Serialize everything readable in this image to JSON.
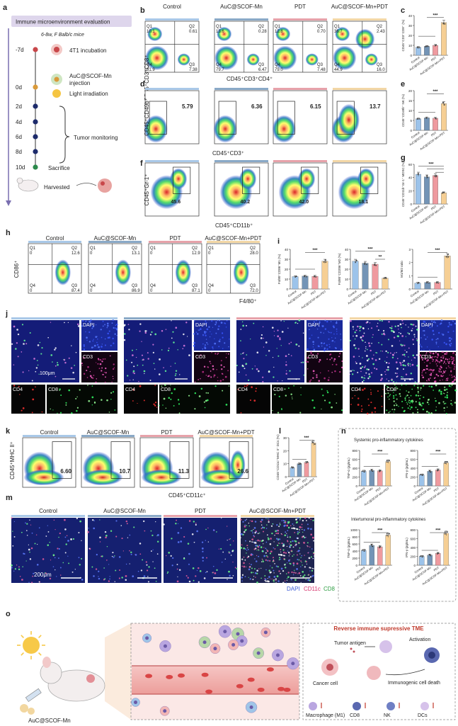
{
  "panel_letters": {
    "a": "a",
    "b": "b",
    "c": "c",
    "d": "d",
    "e": "e",
    "f": "f",
    "g": "g",
    "h": "h",
    "i": "i",
    "j": "j",
    "k": "k",
    "l": "l",
    "m": "m",
    "n": "n",
    "o": "o"
  },
  "timeline": {
    "title": "Immune microenvironment evaluation",
    "mice": "6-8w, F Balb/c mice",
    "days": [
      "-7d",
      "0d",
      "2d",
      "4d",
      "6d",
      "8d",
      "10d"
    ],
    "events": [
      "4T1 incubation",
      "AuC@SCOF-Mn injection",
      "Light irradiation",
      "Tumor monitoring",
      "Sacrifice",
      "Harvested"
    ]
  },
  "groups": [
    "Control",
    "AuC@SCOF-Mn",
    "PDT",
    "AuC@SCOF-Mn+PDT"
  ],
  "group_colors": [
    "#a9c8e8",
    "#8aa9c7",
    "#e7a2aa",
    "#f3d7a6"
  ],
  "flow_b": {
    "ylabel": "CD45⁺CD3⁺CD8⁺",
    "xlabel": "CD45⁺CD3⁺CD4⁺",
    "quadrants": [
      {
        "Q1": "10.1",
        "Q2": "0.61",
        "Q3": "7.38",
        "Q4": "81.9"
      },
      {
        "Q1": "13.6",
        "Q2": "0.28",
        "Q3": "6.47",
        "Q4": "79.7"
      },
      {
        "Q1": "12.8",
        "Q2": "0.70",
        "Q3": "7.48",
        "Q4": "79.0"
      },
      {
        "Q1": "36.7",
        "Q2": "2.43",
        "Q3": "16.0",
        "Q4": "44.9"
      }
    ]
  },
  "flow_d": {
    "ylabel": "CD45⁺CD49b⁺",
    "xlabel": "CD45⁺CD3⁺",
    "values": [
      "5.79",
      "6.36",
      "6.15",
      "13.7"
    ]
  },
  "flow_f": {
    "ylabel": "CD45⁺Gr-1⁺",
    "xlabel": "CD45⁺CD11b⁺",
    "values": [
      "45.6",
      "40.2",
      "42.0",
      "18.1"
    ]
  },
  "flow_h": {
    "ylabel": "CD86⁺",
    "xlabel": "F4/80⁺",
    "quadrants": [
      {
        "Q1": "0",
        "Q2": "12.6",
        "Q3": "87.4",
        "Q4": "0"
      },
      {
        "Q1": "0",
        "Q2": "13.1",
        "Q3": "86.9",
        "Q4": "0"
      },
      {
        "Q1": "0",
        "Q2": "12.9",
        "Q3": "87.1",
        "Q4": "0"
      },
      {
        "Q1": "0",
        "Q2": "28.0",
        "Q3": "72.0",
        "Q4": "0"
      }
    ]
  },
  "flow_k": {
    "ylabel": "CD45⁺MHC II⁺",
    "xlabel": "CD45⁺CD11c⁺",
    "values": [
      "6.60",
      "10.7",
      "11.3",
      "26.6"
    ]
  },
  "sig": {
    "three": "***",
    "two": "**"
  },
  "xtick_labels": [
    "Control",
    "AuC@SCOF-Mn",
    "PDT",
    "AuC@SCOF-Mn+PDT"
  ],
  "j_labels": {
    "dapi": "DAPI",
    "cd3": "CD3",
    "cd4": "CD4",
    "cd8": "CD8",
    "scale": "100μm"
  },
  "m_labels": {
    "scale": "200μm",
    "dapi": "DAPI",
    "cd11c": "CD11c",
    "cd8": "CD8"
  },
  "n_labels": {
    "systemic": "Systemic pro-inflammatory cytokines",
    "intratumoral": "Intertumoral pro-inflammatory cytokines"
  },
  "o_labels": {
    "mouse": "AuC@SCOF-Mn",
    "title": "Reverse immune supressive TME",
    "tumor_antigen": "Tumor antigen",
    "activation": "Activation",
    "cancer_cell": "Cancer cell",
    "icd": "Immunogenic cell death",
    "legend": [
      "Macrophage (M1)",
      "CD8",
      "NK",
      "DCs"
    ]
  },
  "chart_data": [
    {
      "type": "bar",
      "panel": "c",
      "categories": [
        "Control",
        "AuC@SCOF-Mn",
        "PDT",
        "AuC@SCOF-Mn+PDT"
      ],
      "values": [
        8,
        9,
        10,
        33
      ],
      "ylabel": "CD45⁺CD3⁺CD8⁺ (%)",
      "ylim": [
        0,
        40
      ],
      "yticks": [
        0,
        10,
        20,
        30,
        40
      ]
    },
    {
      "type": "bar",
      "panel": "e",
      "categories": [
        "Control",
        "AuC@SCOF-Mn",
        "PDT",
        "AuC@SCOF-Mn+PDT"
      ],
      "values": [
        5.8,
        6.3,
        6.1,
        13.5
      ],
      "ylabel": "CD45⁺CD49b⁺ NK (%)",
      "ylim": [
        0,
        20
      ],
      "yticks": [
        0,
        5,
        10,
        15,
        20
      ]
    },
    {
      "type": "bar",
      "panel": "g",
      "categories": [
        "Control",
        "AuC@SCOF-Mn",
        "PDT",
        "AuC@SCOF-Mn+PDT"
      ],
      "values": [
        45,
        41,
        43,
        17
      ],
      "ylabel": "CD45⁺CD11b⁺Gr-1⁺ MDSC (%)",
      "ylim": [
        0,
        60
      ],
      "yticks": [
        0,
        20,
        40,
        60
      ]
    },
    {
      "type": "bar",
      "panel": "i1",
      "categories": [
        "Control",
        "AuC@SCOF-Mn",
        "PDT",
        "AuC@SCOF-Mn+PDT"
      ],
      "values": [
        12.5,
        13,
        12.8,
        28
      ],
      "ylabel": "F4/80⁺CD86⁺M1 (%)",
      "ylim": [
        0,
        40
      ],
      "yticks": [
        0,
        10,
        20,
        30,
        40
      ]
    },
    {
      "type": "bar",
      "panel": "i2",
      "categories": [
        "Control",
        "AuC@SCOF-Mn",
        "PDT",
        "AuC@SCOF-Mn+PDT"
      ],
      "values": [
        28,
        26,
        25,
        11
      ],
      "ylabel": "F4/80⁺CD206⁺M2 (%)",
      "ylim": [
        0,
        40
      ],
      "yticks": [
        0,
        10,
        20,
        30,
        40
      ]
    },
    {
      "type": "bar",
      "panel": "i3",
      "categories": [
        "Control",
        "AuC@SCOF-Mn",
        "PDT",
        "AuC@SCOF-Mn+PDT"
      ],
      "values": [
        0.45,
        0.5,
        0.5,
        2.5
      ],
      "ylabel": "M1/M2 ratio",
      "ylim": [
        0,
        3
      ],
      "yticks": [
        0,
        1,
        2,
        3
      ]
    },
    {
      "type": "bar",
      "panel": "l",
      "categories": [
        "Control",
        "AuC@SCOF-Mn",
        "PDT",
        "AuC@SCOF-Mn+PDT"
      ],
      "values": [
        7,
        10,
        11,
        26
      ],
      "ylabel": "CD45⁺CD11c⁺MHC II⁺ DCs (%)",
      "ylim": [
        0,
        30
      ],
      "yticks": [
        0,
        10,
        20,
        30
      ]
    },
    {
      "type": "bar",
      "panel": "n1",
      "categories": [
        "Control",
        "AuC@SCOF-Mn",
        "PDT",
        "AuC@SCOF-Mn+PDT"
      ],
      "values": [
        330,
        350,
        340,
        550
      ],
      "ylabel": "TNF-α (pg/mL)",
      "ylim": [
        0,
        800
      ],
      "yticks": [
        0,
        200,
        400,
        600,
        800
      ]
    },
    {
      "type": "bar",
      "panel": "n2",
      "categories": [
        "Control",
        "AuC@SCOF-Mn",
        "PDT",
        "AuC@SCOF-Mn+PDT"
      ],
      "values": [
        250,
        330,
        360,
        520
      ],
      "ylabel": "IFN-γ (pg/mL)",
      "ylim": [
        0,
        800
      ],
      "yticks": [
        0,
        200,
        400,
        600,
        800
      ]
    },
    {
      "type": "bar",
      "panel": "n3",
      "categories": [
        "Control",
        "AuC@SCOF-Mn",
        "PDT",
        "AuC@SCOF-Mn+PDT"
      ],
      "values": [
        420,
        560,
        520,
        850
      ],
      "ylabel": "TNF-α (pg/mL)",
      "ylim": [
        0,
        1000
      ],
      "yticks": [
        0,
        200,
        400,
        600,
        800,
        1000
      ]
    },
    {
      "type": "bar",
      "panel": "n4",
      "categories": [
        "Control",
        "AuC@SCOF-Mn",
        "PDT",
        "AuC@SCOF-Mn+PDT"
      ],
      "values": [
        200,
        230,
        270,
        720
      ],
      "ylabel": "IFN-γ (pg/mL)",
      "ylim": [
        0,
        800
      ],
      "yticks": [
        0,
        200,
        400,
        600,
        800
      ]
    }
  ]
}
